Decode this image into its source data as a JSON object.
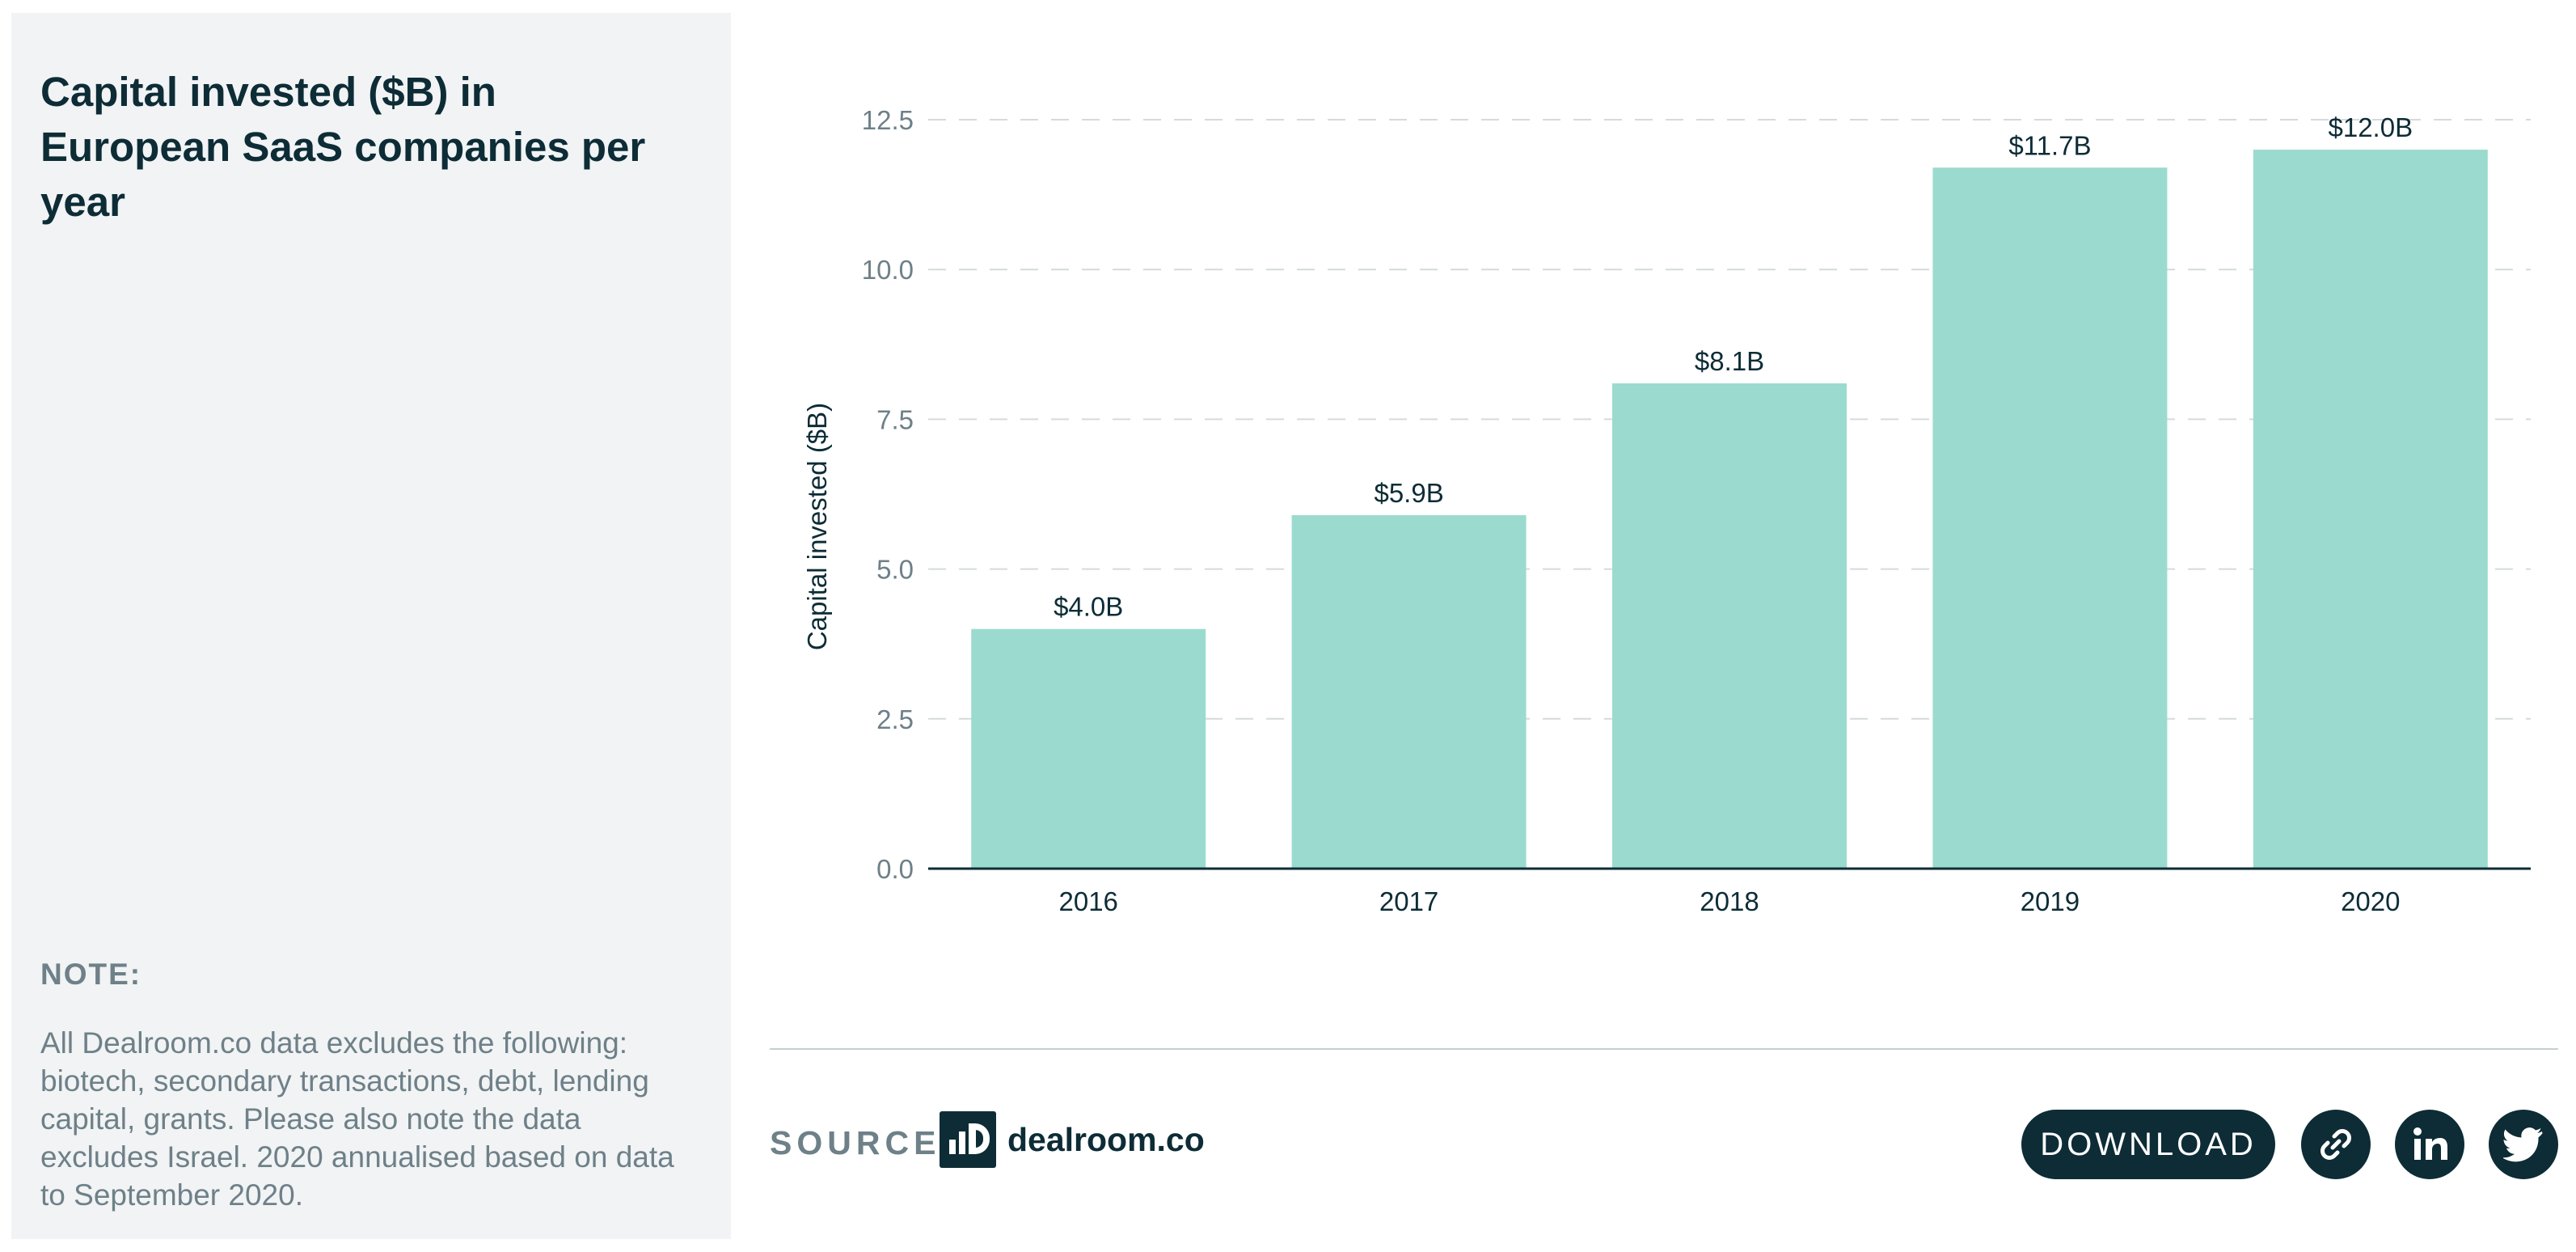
{
  "title": "Capital invested ($B) in European SaaS companies per year",
  "note": {
    "label": "NOTE:",
    "text": "All Dealroom.co data excludes the following: biotech, secondary transactions, debt, lending capital, grants. Please also note the data excludes Israel. 2020 annualised based on data to September 2020."
  },
  "source": {
    "label": "SOURCE:",
    "logo_text": "dealroom.co"
  },
  "actions": {
    "download_label": "DOWNLOAD",
    "icons": [
      "link-icon",
      "linkedin-icon",
      "twitter-icon"
    ]
  },
  "colors": {
    "bar": "#9bdbcf",
    "dark": "#0d2c36",
    "muted": "#6e8088",
    "panel": "#f1f3f4"
  },
  "chart_data": {
    "type": "bar",
    "categories": [
      "2016",
      "2017",
      "2018",
      "2019",
      "2020"
    ],
    "values": [
      4.0,
      5.9,
      8.1,
      11.7,
      12.0
    ],
    "data_labels": [
      "$4.0B",
      "$5.9B",
      "$8.1B",
      "$11.7B",
      "$12.0B"
    ],
    "ylabel": "Capital invested ($B)",
    "xlabel": "",
    "ylim": [
      0,
      12.5
    ],
    "yticks": [
      "0.0",
      "2.5",
      "5.0",
      "7.5",
      "10.0",
      "12.5"
    ],
    "ytick_values": [
      0,
      2.5,
      5,
      7.5,
      10,
      12.5
    ],
    "grid": true,
    "legend": "none"
  }
}
